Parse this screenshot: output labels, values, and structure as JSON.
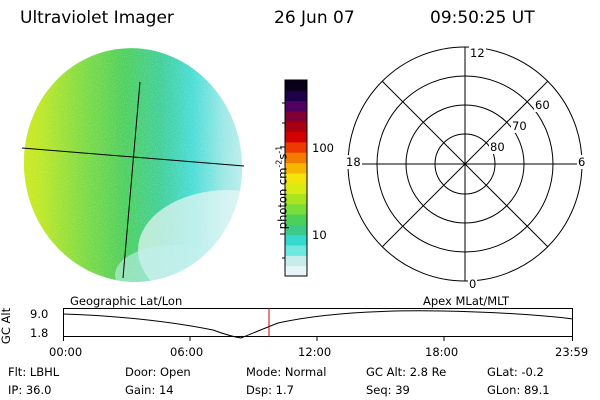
{
  "header": {
    "instrument": "Ultraviolet Imager",
    "date": "26 Jun 07",
    "time": "09:50:25 UT"
  },
  "colorbar": {
    "unit_label": "photon cm",
    "unit_exp1": "-2",
    "unit_s": "s",
    "unit_exp2": "-1",
    "tick_100": "100",
    "tick_10": "10",
    "colors": [
      "#e6f5f5",
      "#c8ecec",
      "#6fe8e0",
      "#36d9cf",
      "#3cc98a",
      "#4bd15a",
      "#79dd3c",
      "#a9e41f",
      "#d8ec13",
      "#f4e40b",
      "#f8b500",
      "#f57a00",
      "#ec3a00",
      "#d20000",
      "#a80010",
      "#7e0036",
      "#510060",
      "#1e004a",
      "#080018"
    ]
  },
  "polar": {
    "mlt_12": "12",
    "mlt_18": "18",
    "mlt_6": "6",
    "mlt_0": "0",
    "lat_60": "60",
    "lat_70": "70",
    "lat_80": "80"
  },
  "timeline": {
    "left_label": "Geographic Lat/Lon",
    "right_label": "Apex  MLat/MLT",
    "axis_label": "GC Alt",
    "y_max": "9.0",
    "y_min": "1.8",
    "ticks": [
      "00:00",
      "06:00",
      "12:00",
      "18:00",
      "23:59"
    ]
  },
  "info": {
    "flt": "Flt: LBHL",
    "ip": "IP: 36.0",
    "door": "Door: Open",
    "gain": "Gain: 14",
    "mode": "Mode: Normal",
    "dsp": "Dsp:     1.7",
    "gcalt": "GC Alt: 2.8 Re",
    "seq": "Seq: 39",
    "glat": "GLat:   -0.2",
    "glon": "GLon:  89.1"
  }
}
